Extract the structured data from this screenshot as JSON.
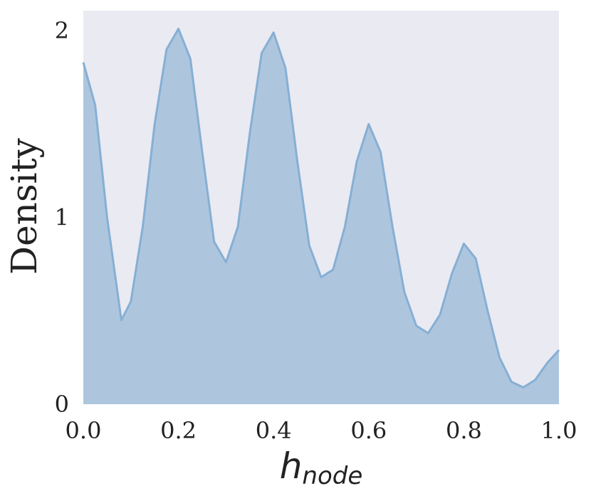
{
  "chart_data": {
    "type": "area",
    "xlabel": {
      "main": "h",
      "subscript": "node"
    },
    "ylabel": "Density",
    "x": [
      0,
      0.025,
      0.05,
      0.08,
      0.1,
      0.125,
      0.15,
      0.175,
      0.2,
      0.225,
      0.25,
      0.275,
      0.3,
      0.325,
      0.35,
      0.375,
      0.4,
      0.425,
      0.45,
      0.475,
      0.5,
      0.525,
      0.55,
      0.575,
      0.6,
      0.625,
      0.65,
      0.675,
      0.7,
      0.725,
      0.75,
      0.775,
      0.8,
      0.825,
      0.85,
      0.875,
      0.9,
      0.925,
      0.95,
      0.975,
      1.0
    ],
    "series": [
      {
        "color": "#86afd4",
        "fill": "#adc6de",
        "values": [
          1.83,
          1.6,
          1.0,
          0.45,
          0.55,
          0.95,
          1.5,
          1.9,
          2.01,
          1.85,
          1.35,
          0.87,
          0.76,
          0.95,
          1.45,
          1.88,
          1.99,
          1.8,
          1.3,
          0.85,
          0.68,
          0.72,
          0.95,
          1.3,
          1.5,
          1.35,
          0.95,
          0.6,
          0.42,
          0.38,
          0.48,
          0.7,
          0.86,
          0.78,
          0.5,
          0.25,
          0.12,
          0.09,
          0.13,
          0.22,
          0.29
        ]
      }
    ],
    "xlim": [
      0,
      1.0
    ],
    "ylim": [
      0,
      2.107
    ],
    "xticks": [
      {
        "value": 0,
        "label": "0.0"
      },
      0.2,
      0.4,
      0.6,
      0.8,
      {
        "value": 1,
        "label": "1.0"
      }
    ],
    "yticks": [
      0,
      1,
      2
    ],
    "background": "#eaeaf2"
  }
}
